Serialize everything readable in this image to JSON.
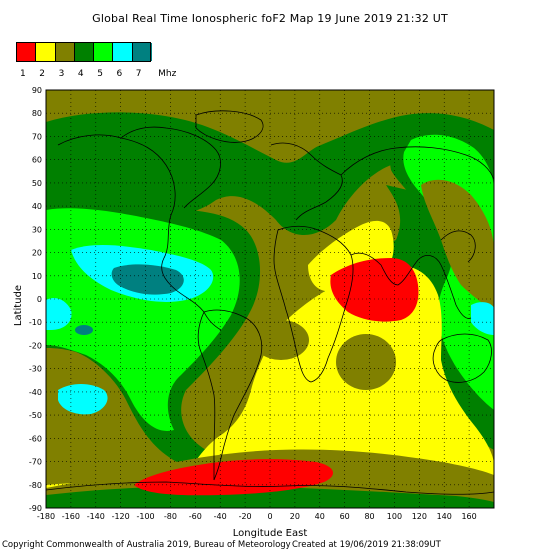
{
  "title": "Global Real Time Ionospheric foF2 Map   19 June 2019 21:32 UT",
  "legend": {
    "colors": [
      "#ff0000",
      "#ffff00",
      "#808000",
      "#008000",
      "#00ff00",
      "#00ffff",
      "#008080"
    ],
    "labels": [
      "1",
      "2",
      "3",
      "4",
      "5",
      "6",
      "7"
    ],
    "unit": "Mhz"
  },
  "axes": {
    "xlabel": "Longitude East",
    "ylabel": "Latitude",
    "xticks": [
      "-180",
      "-160",
      "-140",
      "-120",
      "-100",
      "-80",
      "-60",
      "-40",
      "-20",
      "0",
      "20",
      "40",
      "60",
      "80",
      "100",
      "120",
      "140",
      "160"
    ],
    "yticks": [
      "90",
      "80",
      "70",
      "60",
      "50",
      "40",
      "30",
      "20",
      "10",
      "0",
      "-10",
      "-20",
      "-30",
      "-40",
      "-50",
      "-60",
      "-70",
      "-80",
      "-90"
    ],
    "xrange": [
      -180,
      180
    ],
    "yrange": [
      -90,
      90
    ],
    "grid": "dotted"
  },
  "footer": {
    "copyright": "Copyright Commonwealth of Australia 2019, Bureau of Meteorology",
    "created": "Created at 19/06/2019 21:38:09UT"
  }
}
